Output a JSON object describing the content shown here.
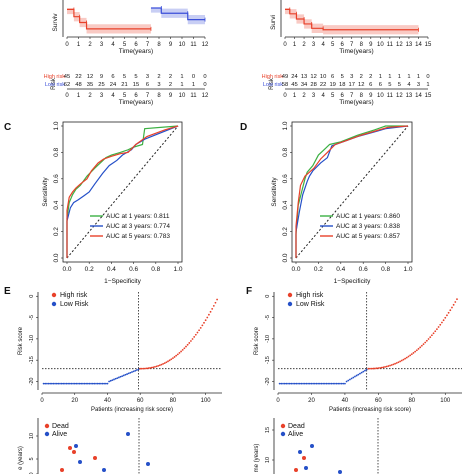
{
  "panels": {
    "A": {
      "type": "line",
      "ylabel": "Surviv",
      "xlabel": "Time(years)",
      "xticks": [
        "0",
        "1",
        "2",
        "3",
        "4",
        "5",
        "6",
        "7",
        "8",
        "9",
        "10",
        "11",
        "12"
      ],
      "series": [
        {
          "name": "High risk",
          "color": "#e8412a",
          "x": [
            0,
            0.6,
            0.6,
            1.1,
            1.1,
            1.7,
            1.7,
            7.3
          ],
          "y": [
            0.95,
            0.95,
            0.7,
            0.7,
            0.5,
            0.5,
            0.28,
            0.28
          ]
        },
        {
          "name": "Low risk",
          "color": "#3b4fd9",
          "x": [
            7.3,
            8.2,
            8.2,
            10.5,
            10.5,
            12
          ],
          "y": [
            1.0,
            1.0,
            0.82,
            0.82,
            0.6,
            0.6
          ]
        }
      ],
      "risk_table": {
        "title": "Risk",
        "rows": [
          {
            "label": "High risk",
            "color": "#e8412a",
            "values": [
              "45",
              "22",
              "12",
              "9",
              "6",
              "5",
              "5",
              "3",
              "2",
              "2",
              "1",
              "0",
              "0"
            ]
          },
          {
            "label": "Low risk",
            "color": "#3b4fd9",
            "values": [
              "62",
              "48",
              "35",
              "25",
              "24",
              "21",
              "15",
              "6",
              "3",
              "2",
              "1",
              "1",
              "0"
            ]
          }
        ]
      }
    },
    "B": {
      "type": "line",
      "ylabel": "Survi",
      "xlabel": "Time(years)",
      "xticks": [
        "0",
        "1",
        "2",
        "3",
        "4",
        "5",
        "6",
        "7",
        "8",
        "9",
        "10",
        "11",
        "12",
        "13",
        "14",
        "15"
      ],
      "series": [
        {
          "name": "High risk",
          "color": "#e8412a",
          "x": [
            0,
            0.5,
            0.5,
            1.2,
            1.2,
            2.0,
            2.0,
            2.8,
            2.8,
            4.0,
            4.0,
            14
          ],
          "y": [
            0.95,
            0.95,
            0.8,
            0.8,
            0.62,
            0.62,
            0.45,
            0.45,
            0.3,
            0.3,
            0.25,
            0.25
          ]
        }
      ],
      "risk_table": {
        "title": "Risk",
        "rows": [
          {
            "label": "High risk",
            "color": "#e8412a",
            "values": [
              "49",
              "24",
              "13",
              "12",
              "10",
              "6",
              "5",
              "3",
              "2",
              "2",
              "1",
              "1",
              "1",
              "1",
              "1",
              "0"
            ]
          },
          {
            "label": "Low risk",
            "color": "#3b4fd9",
            "values": [
              "58",
              "45",
              "34",
              "28",
              "22",
              "19",
              "18",
              "17",
              "12",
              "6",
              "6",
              "5",
              "5",
              "4",
              "3",
              "1"
            ]
          }
        ]
      }
    },
    "C": {
      "letter": "C",
      "type": "line",
      "xlabel": "1−Specificity",
      "ylabel": "Sensitivity",
      "ticks": [
        "0.0",
        "0.2",
        "0.4",
        "0.6",
        "0.8",
        "1.0"
      ],
      "legend": [
        {
          "label": "AUC at 1 years: 0.811",
          "color": "#3cb043"
        },
        {
          "label": "AUC at 3 years: 0.774",
          "color": "#2550c8"
        },
        {
          "label": "AUC at 5 years: 0.783",
          "color": "#e8412a"
        }
      ],
      "curves": [
        {
          "color": "#3cb043",
          "x": [
            0,
            0,
            0.02,
            0.05,
            0.08,
            0.12,
            0.18,
            0.25,
            0.3,
            0.35,
            0.4,
            0.48,
            0.55,
            0.6,
            0.68,
            0.7,
            1.0
          ],
          "y": [
            0,
            0.3,
            0.42,
            0.48,
            0.52,
            0.55,
            0.62,
            0.68,
            0.72,
            0.76,
            0.78,
            0.8,
            0.82,
            0.84,
            0.86,
            0.98,
            1.0
          ]
        },
        {
          "color": "#2550c8",
          "x": [
            0,
            0,
            0.03,
            0.06,
            0.1,
            0.15,
            0.2,
            0.25,
            0.32,
            0.38,
            0.45,
            0.5,
            0.58,
            0.62,
            0.7,
            0.85,
            1.0
          ],
          "y": [
            0,
            0.28,
            0.38,
            0.42,
            0.44,
            0.47,
            0.5,
            0.56,
            0.64,
            0.7,
            0.74,
            0.78,
            0.82,
            0.86,
            0.9,
            0.95,
            1.0
          ]
        },
        {
          "color": "#e8412a",
          "x": [
            0,
            0,
            0.02,
            0.05,
            0.08,
            0.12,
            0.18,
            0.22,
            0.28,
            0.33,
            0.4,
            0.48,
            0.55,
            0.62,
            0.72,
            0.88,
            1.0
          ],
          "y": [
            0,
            0.36,
            0.46,
            0.5,
            0.53,
            0.56,
            0.6,
            0.66,
            0.72,
            0.75,
            0.77,
            0.79,
            0.8,
            0.86,
            0.92,
            0.97,
            1.0
          ]
        }
      ]
    },
    "D": {
      "letter": "D",
      "type": "line",
      "xlabel": "1−Specificity",
      "ylabel": "Sensitivity",
      "ticks": [
        "0.0",
        "0.2",
        "0.4",
        "0.6",
        "0.8",
        "1.0"
      ],
      "legend": [
        {
          "label": "AUC at 1 years: 0.860",
          "color": "#3cb043"
        },
        {
          "label": "AUC at 3 years: 0.838",
          "color": "#2550c8"
        },
        {
          "label": "AUC at 5 years: 0.857",
          "color": "#e8412a"
        }
      ],
      "curves": [
        {
          "color": "#3cb043",
          "x": [
            0,
            0,
            0.02,
            0.05,
            0.08,
            0.1,
            0.15,
            0.2,
            0.25,
            0.3,
            0.4,
            0.55,
            0.7,
            0.8,
            1.0
          ],
          "y": [
            0,
            0.18,
            0.4,
            0.5,
            0.6,
            0.65,
            0.7,
            0.78,
            0.82,
            0.86,
            0.88,
            0.93,
            0.97,
            1.0,
            1.0
          ]
        },
        {
          "color": "#2550c8",
          "x": [
            0,
            0,
            0.03,
            0.06,
            0.1,
            0.12,
            0.15,
            0.22,
            0.28,
            0.32,
            0.42,
            0.55,
            0.68,
            0.8,
            1.0
          ],
          "y": [
            0,
            0.2,
            0.35,
            0.48,
            0.58,
            0.62,
            0.66,
            0.72,
            0.76,
            0.85,
            0.88,
            0.92,
            0.95,
            0.98,
            1.0
          ]
        },
        {
          "color": "#e8412a",
          "x": [
            0,
            0,
            0.02,
            0.04,
            0.08,
            0.12,
            0.16,
            0.22,
            0.28,
            0.35,
            0.45,
            0.58,
            0.7,
            0.82,
            1.0
          ],
          "y": [
            0,
            0.24,
            0.42,
            0.55,
            0.62,
            0.65,
            0.68,
            0.75,
            0.8,
            0.86,
            0.89,
            0.93,
            0.96,
            0.99,
            1.0
          ]
        }
      ]
    },
    "E": {
      "letter": "E",
      "type": "scatter",
      "xlabel": "Patients (increasing risk socre)",
      "ylabel": "Risk score",
      "xticks": [
        "0",
        "20",
        "40",
        "60",
        "80",
        "100"
      ],
      "yticks": [
        "-20",
        "-15",
        "-10",
        "-5",
        "0"
      ],
      "legend": [
        {
          "label": "High risk",
          "color": "#e8412a"
        },
        {
          "label": "Low Risk",
          "color": "#2550c8"
        }
      ],
      "cutoff_patient": 59,
      "cutoff_score": -17,
      "n_patients": 107,
      "ymin": -22,
      "ymax": 1
    },
    "F": {
      "letter": "F",
      "type": "scatter",
      "xlabel": "Patients (increasing risk score)",
      "ylabel": "Risk score",
      "xticks": [
        "0",
        "20",
        "40",
        "60",
        "80",
        "100"
      ],
      "yticks": [
        "-20",
        "-15",
        "-10",
        "-5",
        "0"
      ],
      "legend": [
        {
          "label": "High risk",
          "color": "#e8412a"
        },
        {
          "label": "Low Risk",
          "color": "#2550c8"
        }
      ],
      "cutoff_patient": 53,
      "cutoff_score": -17,
      "n_patients": 107,
      "ymin": -22,
      "ymax": 1
    },
    "G": {
      "type": "scatter",
      "ylabel": "e (years)",
      "yticks": [
        "0",
        "5",
        "10"
      ],
      "legend": [
        {
          "label": "Dead",
          "color": "#e8412a"
        },
        {
          "label": "Alive",
          "color": "#2550c8"
        }
      ]
    },
    "H": {
      "type": "scatter",
      "ylabel": "me (years)",
      "yticks": [
        "10",
        "15"
      ],
      "legend": [
        {
          "label": "Dead",
          "color": "#e8412a"
        },
        {
          "label": "Alive",
          "color": "#2550c8"
        }
      ]
    }
  }
}
